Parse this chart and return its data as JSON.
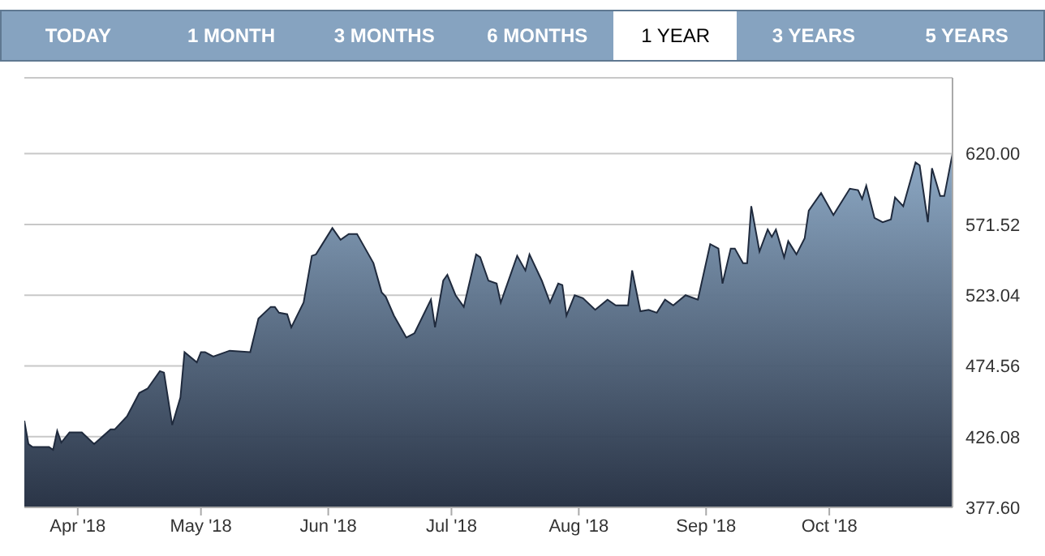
{
  "chart_data": {
    "type": "area",
    "annotations": [
      "TODAY",
      "1 MONTH",
      "3 MONTHS",
      "6 MONTHS",
      "1 YEAR",
      "3 YEARS",
      "5 YEARS"
    ],
    "x": [
      "2018-03-19",
      "2018-03-20",
      "2018-03-21",
      "2018-03-25",
      "2018-03-26",
      "2018-03-27",
      "2018-03-28",
      "2018-03-30",
      "2018-04-02",
      "2018-04-05",
      "2018-04-09",
      "2018-04-10",
      "2018-04-13",
      "2018-04-16",
      "2018-04-18",
      "2018-04-21",
      "2018-04-22",
      "2018-04-24",
      "2018-04-26",
      "2018-04-27",
      "2018-04-30",
      "2018-05-01",
      "2018-05-02",
      "2018-05-04",
      "2018-05-08",
      "2018-05-13",
      "2018-05-15",
      "2018-05-18",
      "2018-05-19",
      "2018-05-20",
      "2018-05-22",
      "2018-05-23",
      "2018-05-26",
      "2018-05-28",
      "2018-05-29",
      "2018-06-02",
      "2018-06-04",
      "2018-06-06",
      "2018-06-08",
      "2018-06-12",
      "2018-06-14",
      "2018-06-15",
      "2018-06-17",
      "2018-06-20",
      "2018-06-22",
      "2018-06-26",
      "2018-06-27",
      "2018-06-29",
      "2018-06-30",
      "2018-07-02",
      "2018-07-04",
      "2018-07-07",
      "2018-07-08",
      "2018-07-10",
      "2018-07-12",
      "2018-07-13",
      "2018-07-17",
      "2018-07-19",
      "2018-07-20",
      "2018-07-23",
      "2018-07-25",
      "2018-07-27",
      "2018-07-28",
      "2018-07-29",
      "2018-07-31",
      "2018-08-02",
      "2018-08-05",
      "2018-08-08",
      "2018-08-10",
      "2018-08-13",
      "2018-08-14",
      "2018-08-16",
      "2018-08-18",
      "2018-08-20",
      "2018-08-22",
      "2018-08-24",
      "2018-08-27",
      "2018-08-30",
      "2018-09-02",
      "2018-09-04",
      "2018-09-05",
      "2018-09-07",
      "2018-09-08",
      "2018-09-10",
      "2018-09-11",
      "2018-09-12",
      "2018-09-14",
      "2018-09-16",
      "2018-09-17",
      "2018-09-18",
      "2018-09-20",
      "2018-09-21",
      "2018-09-23",
      "2018-09-25",
      "2018-09-26",
      "2018-09-29",
      "2018-10-02",
      "2018-10-04",
      "2018-10-06",
      "2018-10-08",
      "2018-10-09",
      "2018-10-10",
      "2018-10-12",
      "2018-10-14",
      "2018-10-16",
      "2018-10-17",
      "2018-10-19",
      "2018-10-22",
      "2018-10-23",
      "2018-10-25",
      "2018-10-26",
      "2018-10-28",
      "2018-10-29",
      "2018-10-31"
    ],
    "series": [
      {
        "color": "#1f2a3d",
        "values": [
          437,
          421,
          419,
          419,
          417,
          430,
          422,
          429,
          429,
          421,
          431,
          431,
          440,
          456,
          459,
          471,
          470,
          434,
          453,
          484,
          477,
          484,
          484,
          481,
          485,
          484,
          507,
          515,
          515,
          511,
          510,
          501,
          518,
          550,
          551,
          569,
          561,
          565,
          565,
          545,
          525,
          522,
          509,
          494,
          497,
          520,
          501,
          533,
          537,
          523,
          515,
          551,
          549,
          533,
          531,
          518,
          550,
          540,
          551,
          533,
          518,
          531,
          530,
          509,
          523,
          521,
          513,
          520,
          516,
          516,
          540,
          512,
          513,
          511,
          520,
          516,
          523,
          520,
          558,
          555,
          531,
          555,
          555,
          545,
          545,
          584,
          553,
          568,
          563,
          568,
          549,
          560,
          551,
          562,
          581,
          593,
          578,
          587,
          596,
          595,
          589,
          598,
          576,
          573,
          575,
          590,
          584,
          614,
          612,
          573,
          610,
          591,
          591,
          620
        ]
      }
    ],
    "xlim": [
      "2018-03-19",
      "2018-10-31"
    ],
    "xticks": [
      {
        "value": "2018-04-01",
        "label": "Apr '18"
      },
      {
        "value": "2018-05-01",
        "label": "May '18"
      },
      {
        "value": "2018-06-01",
        "label": "Jun '18"
      },
      {
        "value": "2018-07-01",
        "label": "Jul '18"
      },
      {
        "value": "2018-08-01",
        "label": "Aug '18"
      },
      {
        "value": "2018-09-01",
        "label": "Sep '18"
      },
      {
        "value": "2018-10-01",
        "label": "Oct '18"
      }
    ],
    "ylim": [
      377.6,
      672
    ],
    "yticks": [
      {
        "value": 377.6,
        "label": "377.60"
      },
      {
        "value": 426.08,
        "label": "426.08"
      },
      {
        "value": 474.56,
        "label": "474.56"
      },
      {
        "value": 523.04,
        "label": "523.04"
      },
      {
        "value": 571.52,
        "label": "571.52"
      },
      {
        "value": 620,
        "label": "620.00"
      }
    ],
    "grid": "y"
  }
}
